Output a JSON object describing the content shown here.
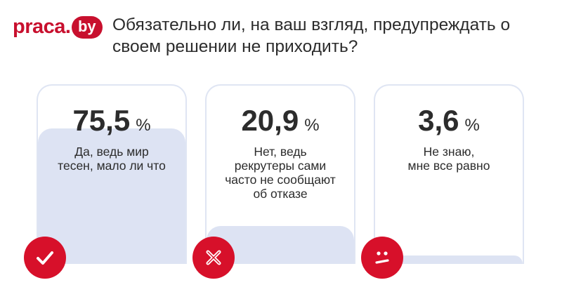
{
  "logo": {
    "word": "praca",
    "dot": ".",
    "suffix": "by"
  },
  "question": "Обязательно ли, на ваш взгляд, предупреждать о своем решении не приходить?",
  "colors": {
    "brand": "#c8102e",
    "badge": "#d7102a",
    "fill": "#dde3f3",
    "border": "#dfe5f3"
  },
  "chart_data": {
    "type": "bar",
    "categories": [
      "Да, ведь мир тесен, мало ли что",
      "Нет, ведь рекрутеры сами часто не сообщают об отказе",
      "Не знаю, мне все равно"
    ],
    "values": [
      75.5,
      20.9,
      3.6
    ],
    "value_labels": [
      "75,5",
      "20,9",
      "3,6"
    ],
    "unit": "%",
    "ylim": [
      0,
      100
    ],
    "icons": [
      "check-icon",
      "cross-icon",
      "neutral-face-icon"
    ]
  }
}
